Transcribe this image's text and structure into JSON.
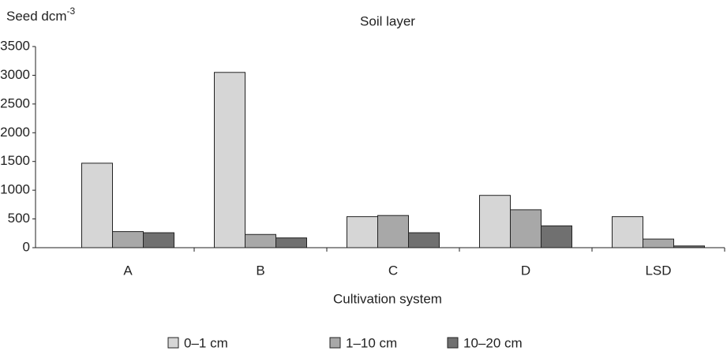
{
  "chart_data": {
    "type": "bar",
    "title": "Soil layer",
    "ylabel": "Seed dcm",
    "ylabel_superscript": "-3",
    "xlabel": "Cultivation system",
    "categories": [
      "A",
      "B",
      "C",
      "D",
      "LSD"
    ],
    "series": [
      {
        "name": "0–1 cm",
        "color": "#d6d6d6",
        "values": [
          1470,
          3050,
          540,
          910,
          540
        ]
      },
      {
        "name": "1–10 cm",
        "color": "#a8a8a8",
        "values": [
          280,
          230,
          560,
          660,
          150
        ]
      },
      {
        "name": "10–20 cm",
        "color": "#707070",
        "values": [
          260,
          170,
          260,
          380,
          30
        ]
      }
    ],
    "ylim": [
      0,
      3500
    ],
    "yticks": [
      0,
      500,
      1000,
      1500,
      2000,
      2500,
      3000,
      3500
    ],
    "legend": "bottom"
  }
}
